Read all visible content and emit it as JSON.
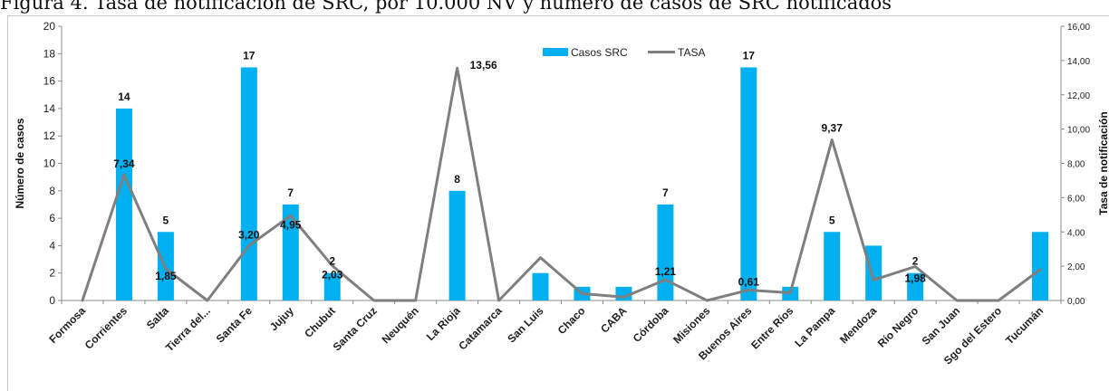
{
  "figure": {
    "title": "Figura 4. Tasa de notificación de SRC, por 10.000 NV y número de casos de SRC notificados"
  },
  "chart_data": {
    "type": "bar",
    "categories": [
      "Formosa",
      "Corrientes",
      "Salta",
      "Tierra del...",
      "Santa Fe",
      "Jujuy",
      "Chubut",
      "Santa Cruz",
      "Neuquén",
      "La Rioja",
      "Catamarca",
      "San Luis",
      "Chaco",
      "CABA",
      "Córdoba",
      "Misiones",
      "Buenos Aires",
      "Entre Ríos",
      "La Pampa",
      "Mendoza",
      "Río Negro",
      "San Juan",
      "Sgo del Estero",
      "Tucumán"
    ],
    "series": [
      {
        "name": "Casos SRC",
        "type": "bar",
        "axis": "left",
        "color": "#00b0f0",
        "values": [
          0,
          14,
          5,
          0,
          17,
          7,
          2,
          0,
          0,
          8,
          0,
          2,
          1,
          1,
          7,
          0,
          17,
          1,
          5,
          4,
          2,
          0,
          0,
          5
        ],
        "labels": [
          "",
          "14",
          "5",
          "",
          "17",
          "7",
          "2",
          "",
          "",
          "8",
          "",
          "",
          "",
          "",
          "7",
          "",
          "17",
          "",
          "5",
          "",
          "2",
          "",
          "",
          ""
        ]
      },
      {
        "name": "TASA",
        "type": "line",
        "axis": "right",
        "color": "#7f7f7f",
        "values": [
          0,
          7.34,
          1.85,
          0,
          3.2,
          4.95,
          2.03,
          0,
          0,
          13.56,
          0,
          2.5,
          0.4,
          0.2,
          1.21,
          0,
          0.61,
          0.45,
          9.37,
          1.2,
          1.98,
          0,
          0,
          1.8
        ],
        "labels": [
          "",
          "7,34",
          "1,85",
          "",
          "3,20",
          "4,95",
          "2,03",
          "",
          "",
          "13,56",
          "",
          "",
          "",
          "",
          "1,21",
          "",
          "0,61",
          "",
          "9,37",
          "",
          "1,98",
          "",
          "",
          ""
        ]
      }
    ],
    "left_axis": {
      "label": "Número de casos",
      "ylim": [
        0,
        20
      ],
      "ticks": [
        "0",
        "2",
        "4",
        "6",
        "8",
        "10",
        "12",
        "14",
        "16",
        "18",
        "20"
      ]
    },
    "right_axis": {
      "label": "Tasa de notificación",
      "ylim": [
        0,
        16
      ],
      "ticks": [
        "0,00",
        "2,00",
        "4,00",
        "6,00",
        "8,00",
        "10,00",
        "12,00",
        "14,00",
        "16,00"
      ]
    },
    "legend": {
      "position": "top",
      "entries": [
        "Casos SRC",
        "TASA"
      ]
    },
    "grid": false
  }
}
